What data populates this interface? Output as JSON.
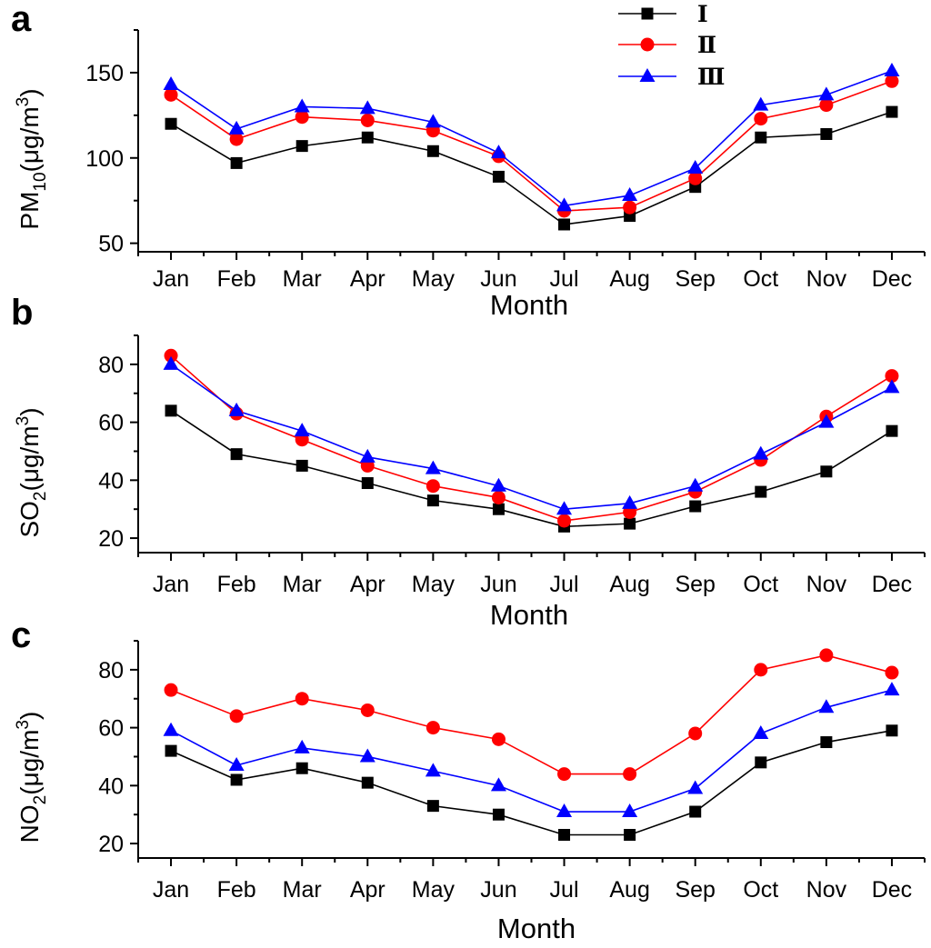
{
  "colors": {
    "I": "#000000",
    "II": "#ff0000",
    "III": "#0000ff"
  },
  "legend": [
    {
      "label": "Ⅰ",
      "series": "I",
      "marker": "square"
    },
    {
      "label": "Ⅱ",
      "series": "II",
      "marker": "circle"
    },
    {
      "label": "Ⅲ",
      "series": "III",
      "marker": "triangle"
    }
  ],
  "chart_data": [
    {
      "type": "line",
      "panel": "a",
      "xlabel": "Month",
      "ylabel": {
        "main": "PM",
        "sub": "10",
        "unit": "(μg/m",
        "sup": "3",
        "close": ")"
      },
      "categories": [
        "Jan",
        "Feb",
        "Mar",
        "Apr",
        "May",
        "Jun",
        "Jul",
        "Aug",
        "Sep",
        "Oct",
        "Nov",
        "Dec"
      ],
      "ylim": [
        45,
        175
      ],
      "yticks": [
        50,
        100,
        150
      ],
      "series": [
        {
          "name": "I",
          "marker": "square",
          "values": [
            120,
            97,
            107,
            112,
            104,
            89,
            61,
            66,
            83,
            112,
            114,
            127
          ]
        },
        {
          "name": "II",
          "marker": "circle",
          "values": [
            137,
            111,
            124,
            122,
            116,
            101,
            69,
            71,
            88,
            123,
            131,
            145
          ]
        },
        {
          "name": "III",
          "marker": "triangle",
          "values": [
            143,
            117,
            130,
            129,
            121,
            103,
            72,
            78,
            94,
            131,
            137,
            151
          ]
        }
      ]
    },
    {
      "type": "line",
      "panel": "b",
      "xlabel": "Month",
      "ylabel": {
        "main": "SO",
        "sub": "2",
        "unit": "(μg/m",
        "sup": "3",
        "close": ")"
      },
      "categories": [
        "Jan",
        "Feb",
        "Mar",
        "Apr",
        "May",
        "Jun",
        "Jul",
        "Aug",
        "Sep",
        "Oct",
        "Nov",
        "Dec"
      ],
      "ylim": [
        15,
        90
      ],
      "yticks": [
        20,
        40,
        60,
        80
      ],
      "series": [
        {
          "name": "I",
          "marker": "square",
          "values": [
            64,
            49,
            45,
            39,
            33,
            30,
            24,
            25,
            31,
            36,
            43,
            57
          ]
        },
        {
          "name": "II",
          "marker": "circle",
          "values": [
            83,
            63,
            54,
            45,
            38,
            34,
            26,
            29,
            36,
            47,
            62,
            76
          ]
        },
        {
          "name": "III",
          "marker": "triangle",
          "values": [
            80,
            64,
            57,
            48,
            44,
            38,
            30,
            32,
            38,
            49,
            60,
            72
          ]
        }
      ]
    },
    {
      "type": "line",
      "panel": "c",
      "xlabel": "Month",
      "ylabel": {
        "main": "NO",
        "sub": "2",
        "unit": "(μg/m",
        "sup": "3",
        "close": ")"
      },
      "categories": [
        "Jan",
        "Feb",
        "Mar",
        "Apr",
        "May",
        "Jun",
        "Jul",
        "Aug",
        "Sep",
        "Oct",
        "Nov",
        "Dec"
      ],
      "ylim": [
        15,
        90
      ],
      "yticks": [
        20,
        40,
        60,
        80
      ],
      "series": [
        {
          "name": "I",
          "marker": "square",
          "values": [
            52,
            42,
            46,
            41,
            33,
            30,
            23,
            23,
            31,
            48,
            55,
            59
          ]
        },
        {
          "name": "II",
          "marker": "circle",
          "values": [
            73,
            64,
            70,
            66,
            60,
            56,
            44,
            44,
            58,
            80,
            85,
            79
          ]
        },
        {
          "name": "III",
          "marker": "triangle",
          "values": [
            59,
            47,
            53,
            50,
            45,
            40,
            31,
            31,
            39,
            58,
            67,
            73
          ]
        }
      ]
    }
  ]
}
